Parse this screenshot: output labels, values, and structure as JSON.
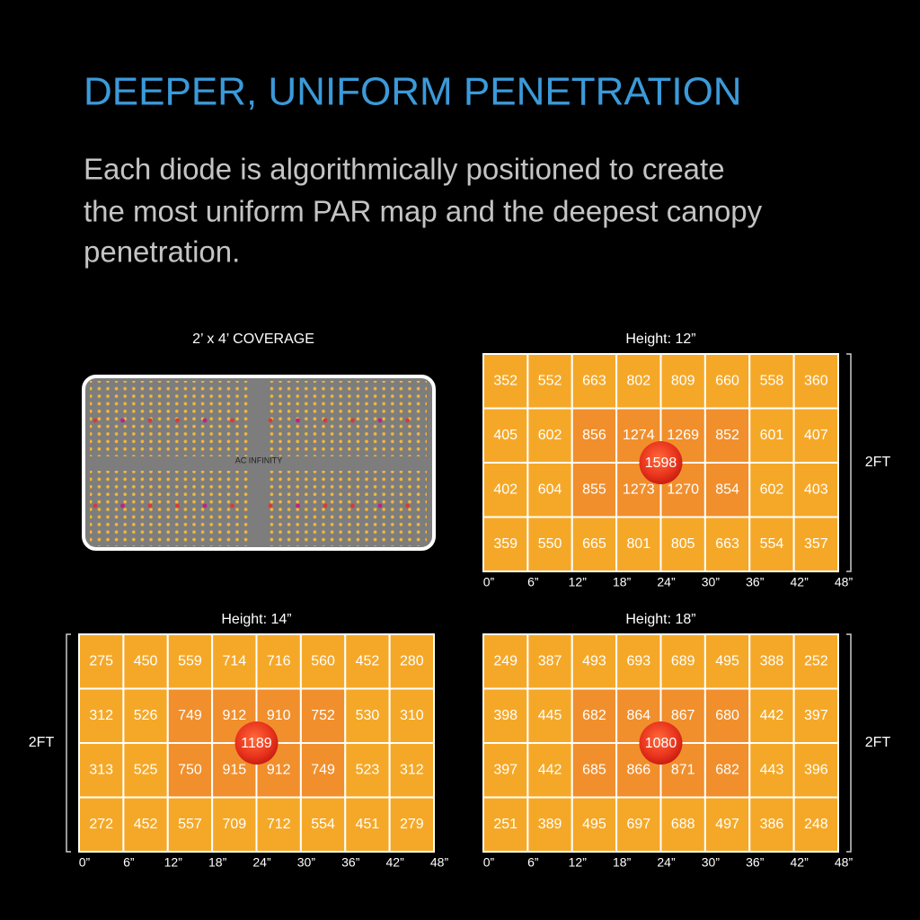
{
  "header": {
    "title": "DEEPER, UNIFORM PENETRATION",
    "description_lines": [
      "Each diode is algorithmically positioned to create",
      "the most uniform PAR map and the deepest canopy",
      "penetration."
    ]
  },
  "panel": {
    "title": "2’ x 4’ COVERAGE",
    "brand": "AC INFINITY"
  },
  "maps": [
    {
      "title": "Height: 12”",
      "peak": "1598",
      "side_label": "2FT",
      "x_labels": [
        "0”",
        "6”",
        "12”",
        "18”",
        "24”",
        "30”",
        "36”",
        "42”",
        "48”"
      ],
      "rows": [
        [
          "352",
          "552",
          "663",
          "802",
          "809",
          "660",
          "558",
          "360"
        ],
        [
          "405",
          "602",
          "856",
          "1274",
          "1269",
          "852",
          "601",
          "407"
        ],
        [
          "402",
          "604",
          "855",
          "1273",
          "1270",
          "854",
          "602",
          "403"
        ],
        [
          "359",
          "550",
          "665",
          "801",
          "805",
          "663",
          "554",
          "357"
        ]
      ]
    },
    {
      "title": "Height: 14”",
      "peak": "1189",
      "side_label": "2FT",
      "x_labels": [
        "0”",
        "6”",
        "12”",
        "18”",
        "24”",
        "30”",
        "36”",
        "42”",
        "48”"
      ],
      "rows": [
        [
          "275",
          "450",
          "559",
          "714",
          "716",
          "560",
          "452",
          "280"
        ],
        [
          "312",
          "526",
          "749",
          "912",
          "910",
          "752",
          "530",
          "310"
        ],
        [
          "313",
          "525",
          "750",
          "915",
          "912",
          "749",
          "523",
          "312"
        ],
        [
          "272",
          "452",
          "557",
          "709",
          "712",
          "554",
          "451",
          "279"
        ]
      ]
    },
    {
      "title": "Height: 18”",
      "peak": "1080",
      "side_label": "2FT",
      "x_labels": [
        "0”",
        "6”",
        "12”",
        "18”",
        "24”",
        "30”",
        "36”",
        "42”",
        "48”"
      ],
      "rows": [
        [
          "249",
          "387",
          "493",
          "693",
          "689",
          "495",
          "388",
          "252"
        ],
        [
          "398",
          "445",
          "682",
          "864",
          "867",
          "680",
          "442",
          "397"
        ],
        [
          "397",
          "442",
          "685",
          "866",
          "871",
          "682",
          "443",
          "396"
        ],
        [
          "251",
          "389",
          "495",
          "697",
          "688",
          "497",
          "386",
          "248"
        ]
      ]
    }
  ]
}
